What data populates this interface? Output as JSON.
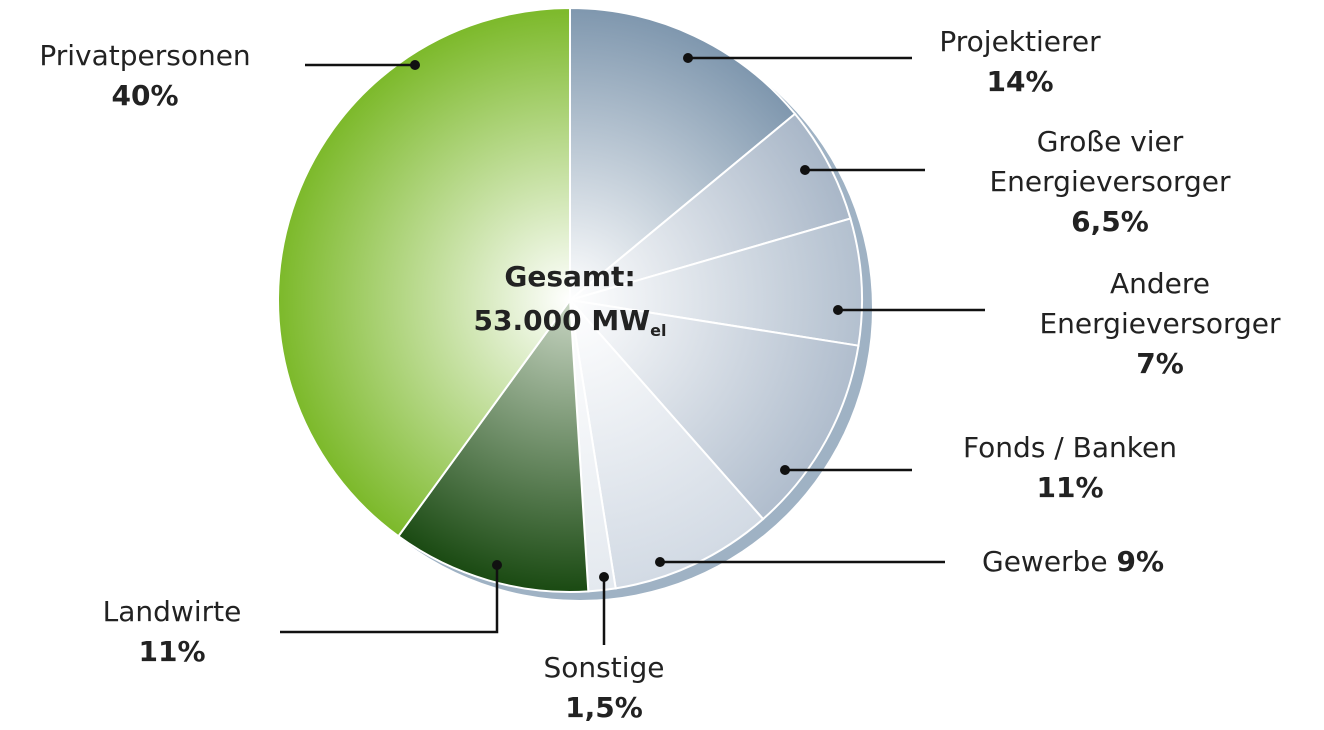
{
  "chart_data": {
    "type": "pie",
    "categories": [
      "Projektierer",
      "Große vier\nEnergieversorger",
      "Andere\nEnergieversorger",
      "Fonds / Banken",
      "Gewerbe",
      "Sonstige",
      "Landwirte",
      "Privatpersonen"
    ],
    "values": [
      14,
      6.5,
      7,
      11,
      9,
      1.5,
      11,
      40
    ],
    "value_labels": [
      "14%",
      "6,5%",
      "7%",
      "11%",
      "9%",
      "1,5%",
      "11%",
      "40%"
    ],
    "colors": [
      "#7f97ae",
      "#a9b7c8",
      "#b3c0cf",
      "#b0bdcd",
      "#d2dae4",
      "#e4e9ef",
      "#1a4a12",
      "#7cb92a"
    ],
    "center_label": {
      "title": "Gesamt:",
      "total": "53.000 MW",
      "unit_subscript": "el"
    }
  }
}
